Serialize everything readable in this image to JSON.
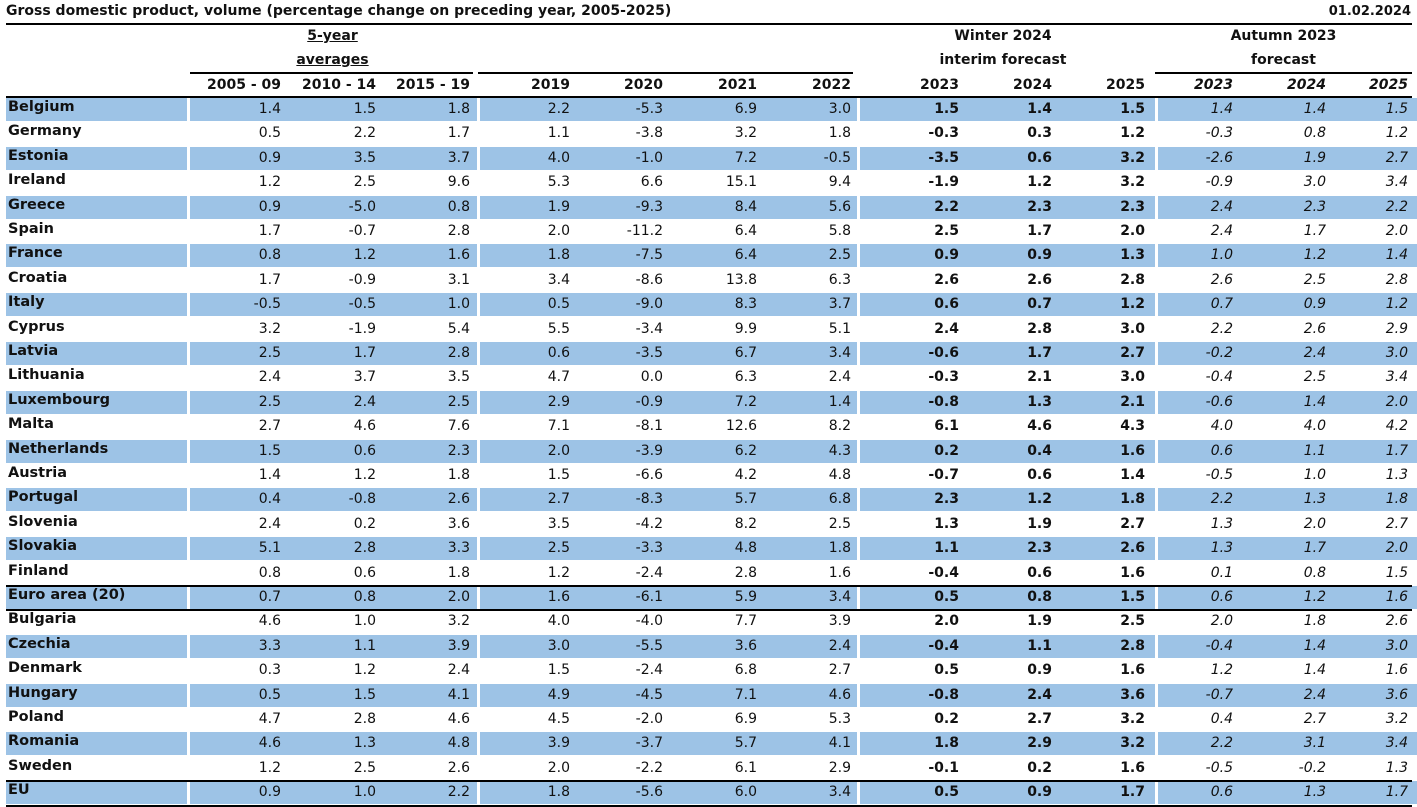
{
  "title": "Gross domestic product, volume (percentage change on preceding year, 2005-2025)",
  "date": "01.02.2024",
  "groups": {
    "avg_line1": "5-year",
    "avg_line2": "averages",
    "winter_line1": "Winter 2024",
    "winter_line2": "interim forecast",
    "autumn_line1": "Autumn 2023",
    "autumn_line2": "forecast"
  },
  "columns": [
    "2005 - 09",
    "2010 - 14",
    "2015 - 19",
    "2019",
    "2020",
    "2021",
    "2022",
    "2023",
    "2024",
    "2025",
    "2023",
    "2024",
    "2025"
  ],
  "colors": {
    "band": "#9dc3e6"
  },
  "rows": [
    {
      "name": "Belgium",
      "values": [
        "1.4",
        "1.5",
        "1.8",
        "2.2",
        "-5.3",
        "6.9",
        "3.0",
        "1.5",
        "1.4",
        "1.5",
        "1.4",
        "1.4",
        "1.5"
      ]
    },
    {
      "name": "Germany",
      "values": [
        "0.5",
        "2.2",
        "1.7",
        "1.1",
        "-3.8",
        "3.2",
        "1.8",
        "-0.3",
        "0.3",
        "1.2",
        "-0.3",
        "0.8",
        "1.2"
      ]
    },
    {
      "name": "Estonia",
      "values": [
        "0.9",
        "3.5",
        "3.7",
        "4.0",
        "-1.0",
        "7.2",
        "-0.5",
        "-3.5",
        "0.6",
        "3.2",
        "-2.6",
        "1.9",
        "2.7"
      ]
    },
    {
      "name": "Ireland",
      "values": [
        "1.2",
        "2.5",
        "9.6",
        "5.3",
        "6.6",
        "15.1",
        "9.4",
        "-1.9",
        "1.2",
        "3.2",
        "-0.9",
        "3.0",
        "3.4"
      ]
    },
    {
      "name": "Greece",
      "values": [
        "0.9",
        "-5.0",
        "0.8",
        "1.9",
        "-9.3",
        "8.4",
        "5.6",
        "2.2",
        "2.3",
        "2.3",
        "2.4",
        "2.3",
        "2.2"
      ]
    },
    {
      "name": "Spain",
      "values": [
        "1.7",
        "-0.7",
        "2.8",
        "2.0",
        "-11.2",
        "6.4",
        "5.8",
        "2.5",
        "1.7",
        "2.0",
        "2.4",
        "1.7",
        "2.0"
      ]
    },
    {
      "name": "France",
      "values": [
        "0.8",
        "1.2",
        "1.6",
        "1.8",
        "-7.5",
        "6.4",
        "2.5",
        "0.9",
        "0.9",
        "1.3",
        "1.0",
        "1.2",
        "1.4"
      ]
    },
    {
      "name": "Croatia",
      "values": [
        "1.7",
        "-0.9",
        "3.1",
        "3.4",
        "-8.6",
        "13.8",
        "6.3",
        "2.6",
        "2.6",
        "2.8",
        "2.6",
        "2.5",
        "2.8"
      ]
    },
    {
      "name": "Italy",
      "values": [
        "-0.5",
        "-0.5",
        "1.0",
        "0.5",
        "-9.0",
        "8.3",
        "3.7",
        "0.6",
        "0.7",
        "1.2",
        "0.7",
        "0.9",
        "1.2"
      ]
    },
    {
      "name": "Cyprus",
      "values": [
        "3.2",
        "-1.9",
        "5.4",
        "5.5",
        "-3.4",
        "9.9",
        "5.1",
        "2.4",
        "2.8",
        "3.0",
        "2.2",
        "2.6",
        "2.9"
      ]
    },
    {
      "name": "Latvia",
      "values": [
        "2.5",
        "1.7",
        "2.8",
        "0.6",
        "-3.5",
        "6.7",
        "3.4",
        "-0.6",
        "1.7",
        "2.7",
        "-0.2",
        "2.4",
        "3.0"
      ]
    },
    {
      "name": "Lithuania",
      "values": [
        "2.4",
        "3.7",
        "3.5",
        "4.7",
        "0.0",
        "6.3",
        "2.4",
        "-0.3",
        "2.1",
        "3.0",
        "-0.4",
        "2.5",
        "3.4"
      ]
    },
    {
      "name": "Luxembourg",
      "values": [
        "2.5",
        "2.4",
        "2.5",
        "2.9",
        "-0.9",
        "7.2",
        "1.4",
        "-0.8",
        "1.3",
        "2.1",
        "-0.6",
        "1.4",
        "2.0"
      ]
    },
    {
      "name": "Malta",
      "values": [
        "2.7",
        "4.6",
        "7.6",
        "7.1",
        "-8.1",
        "12.6",
        "8.2",
        "6.1",
        "4.6",
        "4.3",
        "4.0",
        "4.0",
        "4.2"
      ]
    },
    {
      "name": "Netherlands",
      "values": [
        "1.5",
        "0.6",
        "2.3",
        "2.0",
        "-3.9",
        "6.2",
        "4.3",
        "0.2",
        "0.4",
        "1.6",
        "0.6",
        "1.1",
        "1.7"
      ]
    },
    {
      "name": "Austria",
      "values": [
        "1.4",
        "1.2",
        "1.8",
        "1.5",
        "-6.6",
        "4.2",
        "4.8",
        "-0.7",
        "0.6",
        "1.4",
        "-0.5",
        "1.0",
        "1.3"
      ]
    },
    {
      "name": "Portugal",
      "values": [
        "0.4",
        "-0.8",
        "2.6",
        "2.7",
        "-8.3",
        "5.7",
        "6.8",
        "2.3",
        "1.2",
        "1.8",
        "2.2",
        "1.3",
        "1.8"
      ]
    },
    {
      "name": "Slovenia",
      "values": [
        "2.4",
        "0.2",
        "3.6",
        "3.5",
        "-4.2",
        "8.2",
        "2.5",
        "1.3",
        "1.9",
        "2.7",
        "1.3",
        "2.0",
        "2.7"
      ]
    },
    {
      "name": "Slovakia",
      "values": [
        "5.1",
        "2.8",
        "3.3",
        "2.5",
        "-3.3",
        "4.8",
        "1.8",
        "1.1",
        "2.3",
        "2.6",
        "1.3",
        "1.7",
        "2.0"
      ]
    },
    {
      "name": "Finland",
      "values": [
        "0.8",
        "0.6",
        "1.8",
        "1.2",
        "-2.4",
        "2.8",
        "1.6",
        "-0.4",
        "0.6",
        "1.6",
        "0.1",
        "0.8",
        "1.5"
      ]
    },
    {
      "name": "Euro area (20)",
      "values": [
        "0.7",
        "0.8",
        "2.0",
        "1.6",
        "-6.1",
        "5.9",
        "3.4",
        "0.5",
        "0.8",
        "1.5",
        "0.6",
        "1.2",
        "1.6"
      ]
    },
    {
      "name": "Bulgaria",
      "values": [
        "4.6",
        "1.0",
        "3.2",
        "4.0",
        "-4.0",
        "7.7",
        "3.9",
        "2.0",
        "1.9",
        "2.5",
        "2.0",
        "1.8",
        "2.6"
      ]
    },
    {
      "name": "Czechia",
      "values": [
        "3.3",
        "1.1",
        "3.9",
        "3.0",
        "-5.5",
        "3.6",
        "2.4",
        "-0.4",
        "1.1",
        "2.8",
        "-0.4",
        "1.4",
        "3.0"
      ]
    },
    {
      "name": "Denmark",
      "values": [
        "0.3",
        "1.2",
        "2.4",
        "1.5",
        "-2.4",
        "6.8",
        "2.7",
        "0.5",
        "0.9",
        "1.6",
        "1.2",
        "1.4",
        "1.6"
      ]
    },
    {
      "name": "Hungary",
      "values": [
        "0.5",
        "1.5",
        "4.1",
        "4.9",
        "-4.5",
        "7.1",
        "4.6",
        "-0.8",
        "2.4",
        "3.6",
        "-0.7",
        "2.4",
        "3.6"
      ]
    },
    {
      "name": "Poland",
      "values": [
        "4.7",
        "2.8",
        "4.6",
        "4.5",
        "-2.0",
        "6.9",
        "5.3",
        "0.2",
        "2.7",
        "3.2",
        "0.4",
        "2.7",
        "3.2"
      ]
    },
    {
      "name": "Romania",
      "values": [
        "4.6",
        "1.3",
        "4.8",
        "3.9",
        "-3.7",
        "5.7",
        "4.1",
        "1.8",
        "2.9",
        "3.2",
        "2.2",
        "3.1",
        "3.4"
      ]
    },
    {
      "name": "Sweden",
      "values": [
        "1.2",
        "2.5",
        "2.6",
        "2.0",
        "-2.2",
        "6.1",
        "2.9",
        "-0.1",
        "0.2",
        "1.6",
        "-0.5",
        "-0.2",
        "1.3"
      ]
    },
    {
      "name": "EU",
      "values": [
        "0.9",
        "1.0",
        "2.2",
        "1.8",
        "-5.6",
        "6.0",
        "3.4",
        "0.5",
        "0.9",
        "1.7",
        "0.6",
        "1.3",
        "1.7"
      ]
    }
  ]
}
